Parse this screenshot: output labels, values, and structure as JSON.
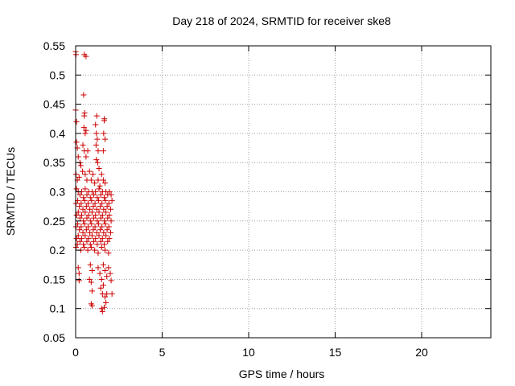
{
  "chart_data": {
    "type": "scatter",
    "title": "Day 218 of 2024, SRMTID for receiver ske8",
    "xlabel": "GPS time / hours",
    "ylabel": "SRMTID / TECUs",
    "xlim": [
      0,
      24
    ],
    "ylim": [
      0.05,
      0.55
    ],
    "xticks": [
      0,
      5,
      10,
      15,
      20
    ],
    "yticks": [
      0.05,
      0.1,
      0.15,
      0.2,
      0.25,
      0.3,
      0.35,
      0.4,
      0.45,
      0.5,
      0.55
    ],
    "grid": true,
    "marker": "+",
    "color": "#cc0000",
    "series": [
      {
        "name": "SRMTID",
        "points": [
          [
            0.0,
            0.54
          ],
          [
            0.02,
            0.535
          ],
          [
            0.5,
            0.535
          ],
          [
            0.6,
            0.532
          ],
          [
            0.0,
            0.44
          ],
          [
            0.05,
            0.42
          ],
          [
            0.46,
            0.466
          ],
          [
            0.5,
            0.43
          ],
          [
            0.52,
            0.435
          ],
          [
            0.48,
            0.41
          ],
          [
            0.55,
            0.4
          ],
          [
            0.6,
            0.405
          ],
          [
            1.22,
            0.43
          ],
          [
            1.15,
            0.415
          ],
          [
            1.2,
            0.4
          ],
          [
            1.25,
            0.39
          ],
          [
            1.18,
            0.38
          ],
          [
            1.3,
            0.37
          ],
          [
            1.65,
            0.422
          ],
          [
            1.66,
            0.425
          ],
          [
            1.62,
            0.4
          ],
          [
            1.7,
            0.39
          ],
          [
            1.6,
            0.37
          ],
          [
            0.05,
            0.385
          ],
          [
            0.1,
            0.375
          ],
          [
            0.15,
            0.36
          ],
          [
            0.42,
            0.38
          ],
          [
            0.5,
            0.37
          ],
          [
            0.6,
            0.36
          ],
          [
            0.7,
            0.37
          ],
          [
            0.25,
            0.35
          ],
          [
            0.3,
            0.345
          ],
          [
            0.4,
            0.335
          ],
          [
            1.2,
            0.355
          ],
          [
            1.28,
            0.35
          ],
          [
            1.35,
            0.34
          ],
          [
            1.5,
            0.33
          ],
          [
            0.02,
            0.33
          ],
          [
            0.1,
            0.32
          ],
          [
            0.2,
            0.325
          ],
          [
            0.55,
            0.33
          ],
          [
            0.65,
            0.32
          ],
          [
            0.8,
            0.335
          ],
          [
            0.9,
            0.32
          ],
          [
            1.0,
            0.33
          ],
          [
            1.1,
            0.315
          ],
          [
            1.3,
            0.32
          ],
          [
            1.4,
            0.31
          ],
          [
            1.6,
            0.32
          ],
          [
            1.7,
            0.315
          ],
          [
            0.05,
            0.305
          ],
          [
            0.15,
            0.3
          ],
          [
            0.25,
            0.295
          ],
          [
            0.35,
            0.3
          ],
          [
            0.45,
            0.29
          ],
          [
            0.55,
            0.305
          ],
          [
            0.65,
            0.295
          ],
          [
            0.75,
            0.3
          ],
          [
            0.85,
            0.29
          ],
          [
            0.95,
            0.3
          ],
          [
            1.05,
            0.295
          ],
          [
            1.15,
            0.3
          ],
          [
            1.25,
            0.29
          ],
          [
            1.35,
            0.305
          ],
          [
            1.45,
            0.295
          ],
          [
            1.55,
            0.3
          ],
          [
            1.65,
            0.29
          ],
          [
            1.75,
            0.3
          ],
          [
            1.85,
            0.295
          ],
          [
            1.95,
            0.3
          ],
          [
            2.05,
            0.295
          ],
          [
            0.02,
            0.28
          ],
          [
            0.12,
            0.285
          ],
          [
            0.22,
            0.275
          ],
          [
            0.32,
            0.28
          ],
          [
            0.42,
            0.27
          ],
          [
            0.52,
            0.285
          ],
          [
            0.62,
            0.275
          ],
          [
            0.72,
            0.28
          ],
          [
            0.82,
            0.27
          ],
          [
            0.92,
            0.285
          ],
          [
            1.02,
            0.275
          ],
          [
            1.12,
            0.28
          ],
          [
            1.22,
            0.27
          ],
          [
            1.32,
            0.285
          ],
          [
            1.42,
            0.275
          ],
          [
            1.52,
            0.28
          ],
          [
            1.62,
            0.27
          ],
          [
            1.72,
            0.285
          ],
          [
            1.82,
            0.275
          ],
          [
            1.92,
            0.28
          ],
          [
            2.02,
            0.27
          ],
          [
            2.1,
            0.285
          ],
          [
            0.05,
            0.26
          ],
          [
            0.15,
            0.265
          ],
          [
            0.25,
            0.255
          ],
          [
            0.35,
            0.26
          ],
          [
            0.45,
            0.25
          ],
          [
            0.55,
            0.265
          ],
          [
            0.65,
            0.255
          ],
          [
            0.75,
            0.26
          ],
          [
            0.85,
            0.25
          ],
          [
            0.95,
            0.265
          ],
          [
            1.05,
            0.255
          ],
          [
            1.15,
            0.26
          ],
          [
            1.25,
            0.25
          ],
          [
            1.35,
            0.265
          ],
          [
            1.45,
            0.255
          ],
          [
            1.55,
            0.26
          ],
          [
            1.65,
            0.25
          ],
          [
            1.75,
            0.265
          ],
          [
            1.85,
            0.255
          ],
          [
            1.95,
            0.26
          ],
          [
            2.05,
            0.25
          ],
          [
            0.02,
            0.24
          ],
          [
            0.12,
            0.245
          ],
          [
            0.22,
            0.235
          ],
          [
            0.32,
            0.24
          ],
          [
            0.42,
            0.23
          ],
          [
            0.52,
            0.245
          ],
          [
            0.62,
            0.235
          ],
          [
            0.72,
            0.24
          ],
          [
            0.82,
            0.23
          ],
          [
            0.92,
            0.245
          ],
          [
            1.02,
            0.235
          ],
          [
            1.12,
            0.24
          ],
          [
            1.22,
            0.23
          ],
          [
            1.32,
            0.245
          ],
          [
            1.42,
            0.235
          ],
          [
            1.52,
            0.24
          ],
          [
            1.62,
            0.23
          ],
          [
            1.72,
            0.245
          ],
          [
            1.82,
            0.235
          ],
          [
            1.92,
            0.24
          ],
          [
            2.02,
            0.23
          ],
          [
            0.05,
            0.22
          ],
          [
            0.15,
            0.225
          ],
          [
            0.25,
            0.215
          ],
          [
            0.35,
            0.22
          ],
          [
            0.45,
            0.21
          ],
          [
            0.55,
            0.225
          ],
          [
            0.65,
            0.215
          ],
          [
            0.75,
            0.22
          ],
          [
            0.85,
            0.21
          ],
          [
            0.95,
            0.225
          ],
          [
            1.05,
            0.215
          ],
          [
            1.15,
            0.22
          ],
          [
            1.25,
            0.21
          ],
          [
            1.35,
            0.225
          ],
          [
            1.45,
            0.215
          ],
          [
            1.55,
            0.22
          ],
          [
            1.65,
            0.21
          ],
          [
            1.75,
            0.225
          ],
          [
            1.85,
            0.215
          ],
          [
            1.95,
            0.22
          ],
          [
            0.02,
            0.205
          ],
          [
            0.1,
            0.21
          ],
          [
            0.3,
            0.2
          ],
          [
            0.5,
            0.205
          ],
          [
            0.7,
            0.2
          ],
          [
            0.9,
            0.205
          ],
          [
            1.1,
            0.2
          ],
          [
            1.3,
            0.195
          ],
          [
            1.5,
            0.205
          ],
          [
            1.7,
            0.2
          ],
          [
            1.9,
            0.195
          ],
          [
            0.15,
            0.17
          ],
          [
            0.2,
            0.16
          ],
          [
            0.85,
            0.175
          ],
          [
            0.95,
            0.165
          ],
          [
            1.3,
            0.17
          ],
          [
            1.4,
            0.16
          ],
          [
            1.6,
            0.175
          ],
          [
            1.7,
            0.165
          ],
          [
            1.8,
            0.155
          ],
          [
            1.9,
            0.17
          ],
          [
            2.0,
            0.16
          ],
          [
            0.2,
            0.148
          ],
          [
            0.8,
            0.15
          ],
          [
            0.9,
            0.145
          ],
          [
            1.5,
            0.15
          ],
          [
            1.6,
            0.14
          ],
          [
            2.05,
            0.148
          ],
          [
            0.95,
            0.13
          ],
          [
            1.45,
            0.135
          ],
          [
            1.55,
            0.125
          ],
          [
            1.7,
            0.12
          ],
          [
            1.8,
            0.125
          ],
          [
            2.1,
            0.125
          ],
          [
            0.9,
            0.108
          ],
          [
            0.95,
            0.105
          ],
          [
            1.5,
            0.1
          ],
          [
            1.55,
            0.095
          ],
          [
            1.65,
            0.102
          ],
          [
            1.75,
            0.11
          ]
        ]
      }
    ]
  }
}
